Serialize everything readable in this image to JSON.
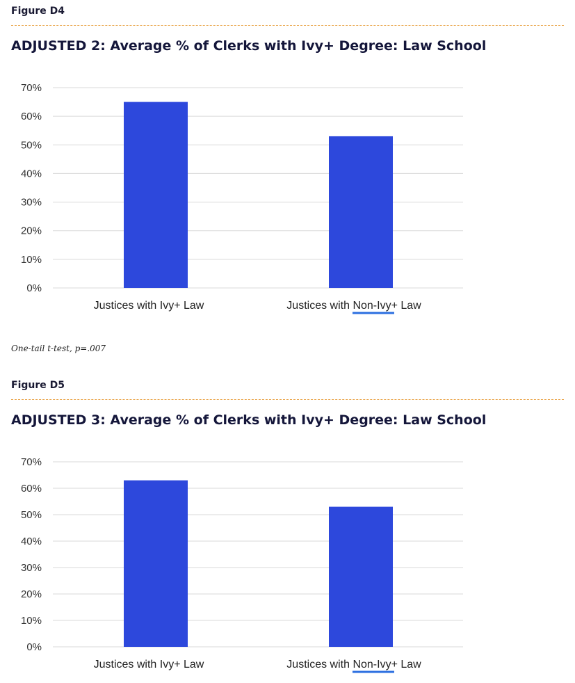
{
  "figures": [
    {
      "label": "Figure D4",
      "title": "ADJUSTED 2: Average % of Clerks with Ivy+ Degree: Law School",
      "note": "One-tail t-test, p=.007"
    },
    {
      "label": "Figure D5",
      "title": "ADJUSTED 3: Average % of Clerks with Ivy+ Degree: Law School"
    }
  ],
  "colors": {
    "bar": "#2d48dc",
    "grid": "#d9d9d9",
    "divider": "#e8a040",
    "spellcheck": "#2b6fe0"
  },
  "chart_data": [
    {
      "type": "bar",
      "title": "ADJUSTED 2: Average % of Clerks with Ivy+ Degree: Law School",
      "categories": [
        "Justices with Ivy+ Law",
        "Justices with Non-Ivy+ Law"
      ],
      "values": [
        0.65,
        0.53
      ],
      "ylim": [
        0,
        0.7
      ],
      "yticks": [
        "0%",
        "10%",
        "20%",
        "30%",
        "40%",
        "50%",
        "60%",
        "70%"
      ],
      "xlabel": "",
      "ylabel": "",
      "grid": true,
      "legend": "none"
    },
    {
      "type": "bar",
      "title": "ADJUSTED 3: Average % of Clerks with Ivy+ Degree: Law School",
      "categories": [
        "Justices with Ivy+ Law",
        "Justices with Non-Ivy+ Law"
      ],
      "values": [
        0.63,
        0.53
      ],
      "ylim": [
        0,
        0.7
      ],
      "yticks": [
        "0%",
        "10%",
        "20%",
        "30%",
        "40%",
        "50%",
        "60%",
        "70%"
      ],
      "xlabel": "",
      "ylabel": "",
      "grid": true,
      "legend": "none"
    }
  ]
}
